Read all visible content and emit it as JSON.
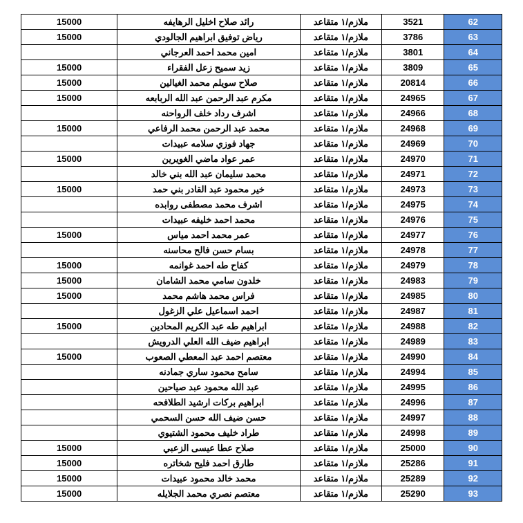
{
  "colors": {
    "seq_bg": "#5b8ed6",
    "seq_fg": "#ffffff",
    "cell_bg": "#ffffff",
    "cell_fg": "#000000",
    "border": "#000000"
  },
  "rows": [
    {
      "seq": "62",
      "id": "3521",
      "rank": "ملازم/١ متقاعد",
      "name": "رائد صلاح اخليل الرهايفه",
      "amount": "15000"
    },
    {
      "seq": "63",
      "id": "3786",
      "rank": "ملازم/١ متقاعد",
      "name": "رياض توفيق ابراهيم الجالودي",
      "amount": "15000"
    },
    {
      "seq": "64",
      "id": "3801",
      "rank": "ملازم/١ متقاعد",
      "name": "امين محمد احمد العرجاني",
      "amount": ""
    },
    {
      "seq": "65",
      "id": "3809",
      "rank": "ملازم/١ متقاعد",
      "name": "زيد سميح زعل الفقراء",
      "amount": "15000"
    },
    {
      "seq": "66",
      "id": "20814",
      "rank": "ملازم/١ متقاعد",
      "name": "صلاح سويلم محمد الغيالين",
      "amount": "15000"
    },
    {
      "seq": "67",
      "id": "24965",
      "rank": "ملازم/١ متقاعد",
      "name": "مكرم عبد الرحمن عبد الله الربابعه",
      "amount": "15000"
    },
    {
      "seq": "68",
      "id": "24966",
      "rank": "ملازم/١ متقاعد",
      "name": "اشرف رداد خلف الرواحنه",
      "amount": ""
    },
    {
      "seq": "69",
      "id": "24968",
      "rank": "ملازم/١ متقاعد",
      "name": "محمد عبد الرحمن محمد الرفاعي",
      "amount": "15000"
    },
    {
      "seq": "70",
      "id": "24969",
      "rank": "ملازم/١ متقاعد",
      "name": "جهاد فوزي سلامه عبيدات",
      "amount": ""
    },
    {
      "seq": "71",
      "id": "24970",
      "rank": "ملازم/١ متقاعد",
      "name": "عمر عواد ماضي الغويرين",
      "amount": "15000"
    },
    {
      "seq": "72",
      "id": "24971",
      "rank": "ملازم/١ متقاعد",
      "name": "محمد سليمان عبد الله بني خالد",
      "amount": ""
    },
    {
      "seq": "73",
      "id": "24973",
      "rank": "ملازم/١ متقاعد",
      "name": "خير محمود عبد القادر بني حمد",
      "amount": "15000"
    },
    {
      "seq": "74",
      "id": "24975",
      "rank": "ملازم/١ متقاعد",
      "name": "اشرف محمد مصطفى روابده",
      "amount": ""
    },
    {
      "seq": "75",
      "id": "24976",
      "rank": "ملازم/١ متقاعد",
      "name": "محمد احمد خليفه عبيدات",
      "amount": ""
    },
    {
      "seq": "76",
      "id": "24977",
      "rank": "ملازم/١ متقاعد",
      "name": "عمر محمد احمد مياس",
      "amount": "15000"
    },
    {
      "seq": "77",
      "id": "24978",
      "rank": "ملازم/١ متقاعد",
      "name": "بسام حسن فالح محاسنه",
      "amount": ""
    },
    {
      "seq": "78",
      "id": "24979",
      "rank": "ملازم/١ متقاعد",
      "name": "كفاح طه احمد غوانمه",
      "amount": "15000"
    },
    {
      "seq": "79",
      "id": "24983",
      "rank": "ملازم/١ متقاعد",
      "name": "خلدون سامي محمد الشامان",
      "amount": "15000"
    },
    {
      "seq": "80",
      "id": "24985",
      "rank": "ملازم/١ متقاعد",
      "name": "فراس محمد هاشم محمد",
      "amount": "15000"
    },
    {
      "seq": "81",
      "id": "24987",
      "rank": "ملازم/١ متقاعد",
      "name": "احمد اسماعيل علي الزغول",
      "amount": ""
    },
    {
      "seq": "82",
      "id": "24988",
      "rank": "ملازم/١ متقاعد",
      "name": "ابراهيم طه عبد الكريم المحادين",
      "amount": "15000"
    },
    {
      "seq": "83",
      "id": "24989",
      "rank": "ملازم/١ متقاعد",
      "name": "ابراهيم ضيف الله العلي الدرويش",
      "amount": ""
    },
    {
      "seq": "84",
      "id": "24990",
      "rank": "ملازم/١ متقاعد",
      "name": "معتصم احمد عبد المعطي الصعوب",
      "amount": "15000"
    },
    {
      "seq": "85",
      "id": "24994",
      "rank": "ملازم/١ متقاعد",
      "name": "سامح محمود ساري جمادنه",
      "amount": ""
    },
    {
      "seq": "86",
      "id": "24995",
      "rank": "ملازم/١ متقاعد",
      "name": "عبد الله محمود عبد صياحين",
      "amount": ""
    },
    {
      "seq": "87",
      "id": "24996",
      "rank": "ملازم/١ متقاعد",
      "name": "ابراهيم بركات ارشيد الطلافحه",
      "amount": ""
    },
    {
      "seq": "88",
      "id": "24997",
      "rank": "ملازم/١ متقاعد",
      "name": "حسن ضيف الله حسن السحمي",
      "amount": ""
    },
    {
      "seq": "89",
      "id": "24998",
      "rank": "ملازم/١ متقاعد",
      "name": "طراد خليف محمود الشتيوي",
      "amount": ""
    },
    {
      "seq": "90",
      "id": "25000",
      "rank": "ملازم/١ متقاعد",
      "name": "صلاح عطا عيسى الزعبي",
      "amount": "15000"
    },
    {
      "seq": "91",
      "id": "25286",
      "rank": "ملازم/١ متقاعد",
      "name": "طارق احمد فليح شخاتره",
      "amount": "15000"
    },
    {
      "seq": "92",
      "id": "25289",
      "rank": "ملازم/١ متقاعد",
      "name": "محمد خالد محمود عبيدات",
      "amount": "15000"
    },
    {
      "seq": "93",
      "id": "25290",
      "rank": "ملازم/١ متقاعد",
      "name": "معتصم نصري محمد الجلايله",
      "amount": "15000"
    }
  ]
}
